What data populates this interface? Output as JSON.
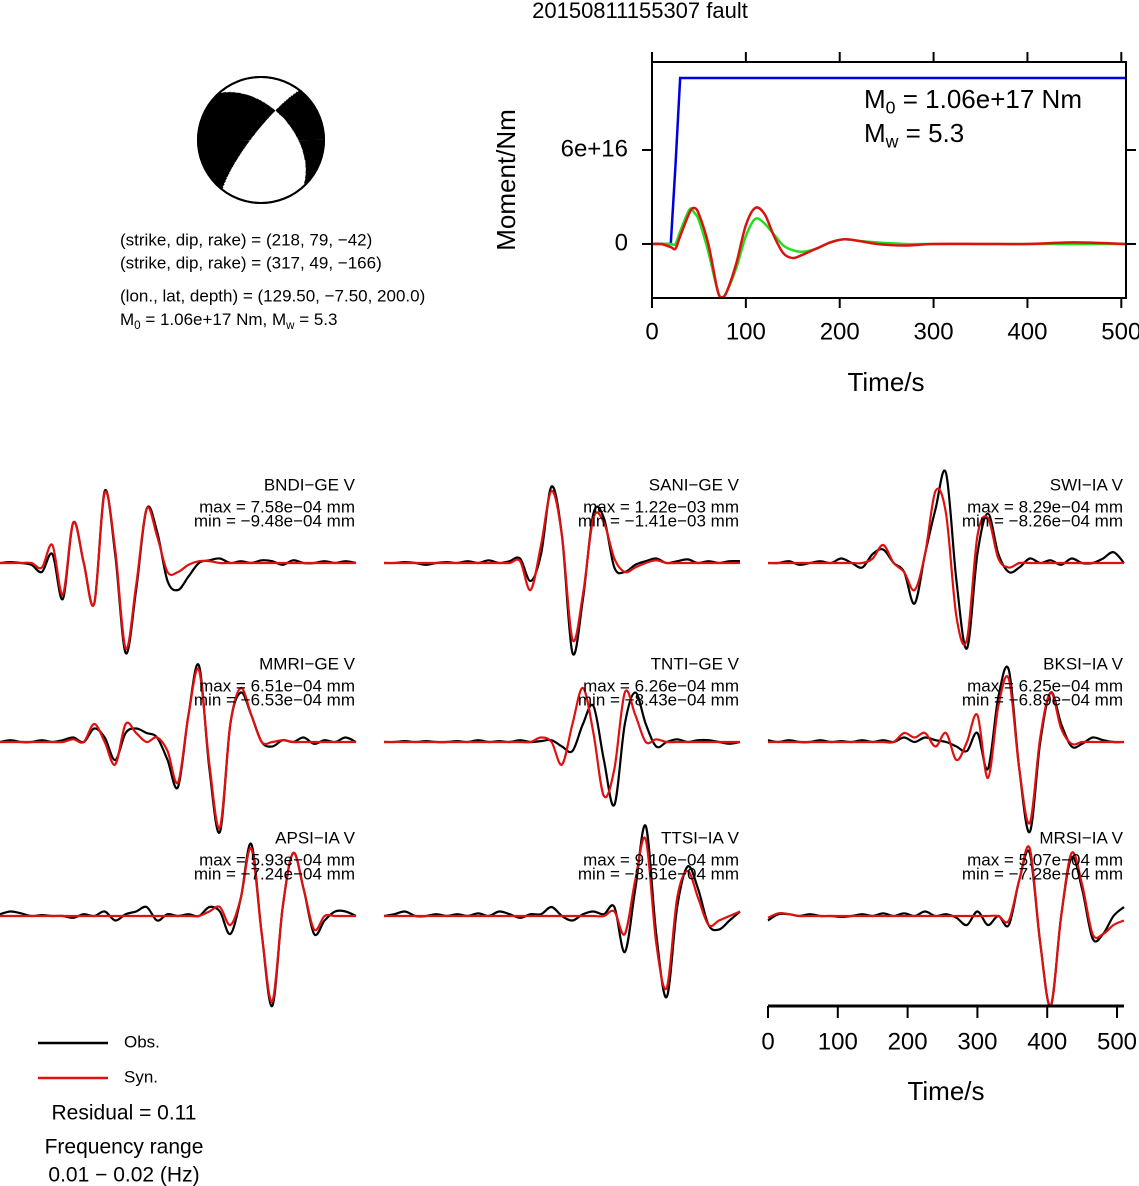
{
  "title": "20150811155307 fault",
  "chart_data": [
    {
      "type": "beachball",
      "planes": [
        {
          "strike": 218,
          "dip": 79,
          "rake": -42
        },
        {
          "strike": 317,
          "dip": 49,
          "rake": -166
        }
      ],
      "labels": [
        "(strike, dip, rake) = (218, 79, −42)",
        "(strike, dip, rake) = (317, 49, −166)",
        "(lon., lat, depth) = (129.50, −7.50, 200.0)"
      ],
      "moment_label": [
        "M",
        "0",
        " = 1.06e+17 Nm, M",
        "w",
        " = 5.3"
      ]
    },
    {
      "type": "line",
      "ylabel": "Moment/Nm",
      "xlabel": "Time/s",
      "x": [
        0,
        10,
        20,
        25,
        30,
        40,
        45,
        50,
        60,
        70,
        75,
        80,
        90,
        100,
        110,
        120,
        130,
        140,
        150,
        160,
        175,
        190,
        205,
        220,
        240,
        270,
        300,
        350,
        400,
        450,
        505
      ],
      "xlim": [
        0,
        505
      ],
      "xticks": [
        0,
        100,
        200,
        300,
        400,
        500
      ],
      "ylim": [
        -3.45e+16,
        1.162e+17
      ],
      "yticks": [
        0,
        {
          "value": 6e+16,
          "label": "6e+16"
        }
      ],
      "series": [
        {
          "color": "#0000dd",
          "values": [
            0,
            0,
            0,
            5e+16,
            1.06e+17,
            1.06e+17,
            1.06e+17,
            1.06e+17,
            1.06e+17,
            1.06e+17,
            1.06e+17,
            1.06e+17,
            1.06e+17,
            1.06e+17,
            1.06e+17,
            1.06e+17,
            1.06e+17,
            1.06e+17,
            1.06e+17,
            1.06e+17,
            1.06e+17,
            1.06e+17,
            1.06e+17,
            1.06e+17,
            1.06e+17,
            1.06e+17,
            1.06e+17,
            1.06e+17,
            1.06e+17,
            1.06e+17,
            1.06e+17
          ]
        },
        {
          "color": "#22dd22",
          "values": [
            0,
            0,
            0,
            0,
            8000000000000000.0,
            2.2e+16,
            2e+16,
            1.5e+16,
            -5000000000000000.0,
            -3e+16,
            -3.4e+16,
            -3e+16,
            -1.5e+16,
            5000000000000000.0,
            1.6e+16,
            1.3e+16,
            6000000000000000.0,
            -1000000000000000.0,
            -4000000000000000.0,
            -5000000000000000.0,
            -3000000000000000.0,
            1000000000000000.0,
            3000000000000000.0,
            2000000000000000.0,
            1000000000000000.0,
            0,
            0,
            0,
            0,
            0,
            0
          ]
        },
        {
          "color": "#dd1111",
          "values": [
            0,
            0,
            -2000000000000000.0,
            -3000000000000000.0,
            5000000000000000.0,
            2e+16,
            2.3e+16,
            1.9e+16,
            0,
            -3e+16,
            -3.4e+16,
            -3e+16,
            -1.2e+16,
            1.2e+16,
            2.3e+16,
            1.9e+16,
            5000000000000000.0,
            -6000000000000000.0,
            -9000000000000000.0,
            -7000000000000000.0,
            -3000000000000000.0,
            1000000000000000.0,
            3000000000000000.0,
            2000000000000000.0,
            0,
            -1000000000000000.0,
            0,
            0,
            0,
            1000000000000000.0,
            0
          ]
        }
      ],
      "annotations": [
        [
          "M",
          "0",
          " = 1.06e+17 Nm"
        ],
        [
          "M",
          "w",
          " = 5.3"
        ]
      ]
    },
    {
      "type": "waveforms",
      "x": [
        0,
        15,
        30,
        45,
        60,
        75,
        90,
        105,
        120,
        135,
        150,
        165,
        180,
        195,
        210,
        225,
        240,
        255,
        270,
        285,
        300,
        315,
        330,
        345,
        360,
        375,
        390,
        405,
        420,
        435,
        450,
        465,
        480,
        495,
        510
      ],
      "xlim": [
        0,
        510
      ],
      "xticks": [
        0,
        100,
        200,
        300,
        400,
        500
      ],
      "xlabel": "Time/s",
      "ylim": [
        -1,
        1
      ],
      "series": [
        {
          "name": "Obs.",
          "color": "#000000"
        },
        {
          "name": "Syn.",
          "color": "#e01010"
        }
      ],
      "panels": [
        {
          "label": "BNDI−GE V",
          "max_label": "max = 7.58e−04 mm",
          "min_label": "min = −9.48e−04 mm",
          "values": [
            [
              0,
              0.01,
              0,
              -0.02,
              -0.1,
              0.1,
              -0.4,
              0.45,
              0,
              -0.45,
              0.8,
              0.1,
              -1,
              -0.3,
              0.6,
              0.35,
              -0.2,
              -0.3,
              -0.15,
              0,
              0.03,
              0.05,
              0,
              0.02,
              0,
              0.03,
              0.02,
              -0.02,
              0.03,
              0,
              0,
              0.02,
              0,
              0.02,
              0
            ],
            [
              0,
              0,
              0,
              0,
              -0.05,
              0.2,
              -0.35,
              0.45,
              0,
              -0.45,
              0.78,
              0.15,
              -0.95,
              -0.25,
              0.6,
              0.3,
              -0.1,
              -0.1,
              -0.02,
              0.02,
              0.02,
              0,
              0,
              0,
              0,
              0,
              0,
              0,
              0,
              0,
              0,
              0,
              0,
              0,
              0
            ]
          ]
        },
        {
          "label": "SANI−GE V",
          "max_label": "max = 1.22e−03 mm",
          "min_label": "min = −1.41e−03 mm",
          "values": [
            [
              0,
              0,
              0.01,
              0,
              -0.02,
              0,
              0.01,
              0,
              0.02,
              0,
              0.03,
              0,
              0.02,
              0.05,
              -0.2,
              0.1,
              0.85,
              0.3,
              -1,
              -0.4,
              0.55,
              0.5,
              -0.05,
              -0.1,
              -0.02,
              0.02,
              0.05,
              0,
              0.02,
              0.04,
              0,
              0.02,
              0,
              0.02,
              0.02
            ],
            [
              0,
              0,
              0,
              0,
              0,
              0,
              0,
              0,
              0,
              0,
              0,
              0,
              0,
              0.02,
              -0.3,
              0.2,
              0.8,
              0.3,
              -0.85,
              -0.35,
              0.5,
              0.45,
              0.05,
              -0.1,
              -0.05,
              0,
              0.03,
              0,
              0,
              0,
              0,
              0,
              0,
              0,
              0
            ]
          ]
        },
        {
          "label": "SWI−IA V",
          "max_label": "max = 8.29e−04 mm",
          "min_label": "min = −8.26e−04 mm",
          "values": [
            [
              0,
              0,
              0.02,
              -0.02,
              0,
              0.02,
              0,
              0.05,
              0,
              -0.05,
              0.1,
              0.15,
              0,
              -0.1,
              -0.45,
              0.1,
              0.6,
              1,
              -0.2,
              -0.95,
              0.1,
              0.55,
              0.1,
              -0.1,
              -0.05,
              0.05,
              0,
              0.03,
              -0.02,
              0.05,
              0,
              0,
              0.05,
              0.12,
              0
            ],
            [
              0,
              0,
              0,
              0,
              0,
              0,
              0,
              0,
              0,
              0,
              0.05,
              0.2,
              0,
              -0.1,
              -0.3,
              0.1,
              0.8,
              0.55,
              -0.6,
              -0.85,
              0.3,
              0.5,
              0.05,
              -0.05,
              0,
              0,
              0,
              0,
              0,
              0,
              0,
              0,
              0,
              0,
              0
            ]
          ]
        },
        {
          "label": "MMRI−GE V",
          "max_label": "max = 6.51e−04 mm",
          "min_label": "min = −6.53e−04 mm",
          "values": [
            [
              0,
              0.02,
              0,
              0,
              0.02,
              0,
              0.02,
              0.05,
              0,
              0.15,
              0.05,
              -0.2,
              0.1,
              0.15,
              0.1,
              0.05,
              -0.2,
              -0.5,
              0.3,
              0.85,
              -0.3,
              -1,
              0.2,
              0.55,
              0.3,
              0,
              -0.05,
              0.02,
              0,
              0.05,
              -0.02,
              0.02,
              0,
              0.05,
              0
            ],
            [
              0,
              0,
              0,
              0,
              0,
              0,
              0,
              0.03,
              0,
              0.2,
              0,
              -0.25,
              0.2,
              0.1,
              0,
              0.05,
              -0.1,
              -0.45,
              0.3,
              0.8,
              -0.25,
              -0.95,
              0.2,
              0.6,
              0.3,
              0,
              0,
              0.02,
              0,
              0,
              0,
              0,
              0,
              0,
              0
            ]
          ]
        },
        {
          "label": "TNTI−GE V",
          "max_label": "max = 6.26e−04 mm",
          "min_label": "min = −8.43e−04 mm",
          "values": [
            [
              0,
              0,
              0.01,
              0,
              0.01,
              0,
              0,
              0.01,
              0,
              0.02,
              0,
              0.01,
              0,
              0.02,
              0,
              0.01,
              0.02,
              -0.05,
              -0.1,
              0.2,
              0.4,
              -0.2,
              -0.7,
              0.2,
              0.55,
              0.2,
              -0.05,
              0,
              0.03,
              0,
              0.02,
              0.02,
              0,
              -0.02,
              0
            ],
            [
              0,
              0,
              0,
              0,
              0,
              0,
              0,
              0,
              0,
              0,
              0,
              0,
              0,
              0,
              0,
              0.05,
              0,
              -0.25,
              0.2,
              0.6,
              0.1,
              -0.6,
              -0.3,
              0.55,
              0.3,
              0,
              0.03,
              0,
              0,
              0,
              0,
              0,
              0,
              0,
              0
            ]
          ]
        },
        {
          "label": "BKSI−IA V",
          "max_label": "max = 6.25e−04 mm",
          "min_label": "min = −6.89e−04 mm",
          "values": [
            [
              0.02,
              0,
              0.02,
              0,
              0,
              0.02,
              0,
              0.01,
              0,
              0.02,
              0,
              0.02,
              0,
              0.05,
              0,
              0.05,
              0.02,
              0,
              -0.05,
              -0.1,
              0.1,
              -0.3,
              0.5,
              0.8,
              -0.3,
              -1,
              0,
              0.55,
              0.2,
              -0.05,
              -0.02,
              0.05,
              0.02,
              0,
              0
            ],
            [
              0,
              0,
              0,
              0,
              0,
              0,
              0,
              0,
              0,
              0,
              0,
              0,
              0,
              0.1,
              0.05,
              0.1,
              -0.05,
              0.1,
              -0.2,
              0,
              0.3,
              -0.4,
              0.4,
              0.7,
              -0.3,
              -0.9,
              0.05,
              0.55,
              0.15,
              -0.02,
              0,
              0,
              0,
              0,
              0
            ]
          ]
        },
        {
          "label": "APSI−IA V",
          "max_label": "max = 5.93e−04 mm",
          "min_label": "min = −7.24e−04 mm",
          "values": [
            [
              0.02,
              0.05,
              0.03,
              0,
              0.01,
              0,
              0,
              -0.02,
              0.02,
              0,
              0.05,
              -0.05,
              0.02,
              0.05,
              0.1,
              -0.05,
              0.02,
              0,
              0.02,
              0,
              0.1,
              0.05,
              -0.2,
              0.2,
              0.8,
              -0.2,
              -1,
              0.1,
              0.7,
              0.3,
              -0.2,
              -0.05,
              0.05,
              0.05,
              0
            ],
            [
              0,
              0,
              0,
              0,
              0,
              0,
              0,
              0,
              0,
              0,
              0,
              0,
              0,
              0,
              0,
              0,
              0,
              0,
              0,
              0,
              0.05,
              0.1,
              -0.1,
              0.2,
              0.75,
              -0.2,
              -0.95,
              0.1,
              0.7,
              0.3,
              -0.15,
              0,
              0,
              0,
              0
            ]
          ]
        },
        {
          "label": "TTSI−IA V",
          "max_label": "max = 9.10e−04 mm",
          "min_label": "min = −8.61e−04 mm",
          "values": [
            [
              0,
              0.02,
              0.05,
              0,
              0,
              0.02,
              0,
              0.02,
              0,
              0.03,
              0,
              0.05,
              0.02,
              -0.02,
              0.02,
              0.02,
              0.1,
              0,
              -0.05,
              0.02,
              0.05,
              0.02,
              0.1,
              -0.4,
              0.3,
              1,
              -0.2,
              -0.9,
              0.1,
              0.55,
              0.3,
              -0.1,
              -0.15,
              -0.05,
              0.05
            ],
            [
              0,
              0,
              0,
              0,
              0,
              0,
              0,
              0,
              0,
              0,
              0,
              0,
              0,
              0,
              0,
              0,
              0,
              0,
              0,
              0,
              0,
              0,
              0.05,
              -0.2,
              0.4,
              0.85,
              -0.3,
              -0.8,
              0.2,
              0.5,
              0.2,
              -0.1,
              -0.05,
              0,
              0.05
            ]
          ]
        },
        {
          "label": "MRSI−IA V",
          "max_label": "max = 5.07e−04 mm",
          "min_label": "min = −7.28e−04 mm",
          "values": [
            [
              -0.05,
              0.02,
              0.02,
              0,
              0.02,
              0,
              0,
              -0.01,
              0,
              0.02,
              0,
              0.03,
              0,
              0.03,
              0,
              0.05,
              0,
              0.02,
              -0.02,
              -0.1,
              0.05,
              -0.1,
              0,
              -0.1,
              0.4,
              0.7,
              -0.3,
              -1,
              0,
              0.65,
              0.3,
              -0.25,
              -0.2,
              0,
              0.1
            ],
            [
              -0.02,
              0.03,
              0.02,
              0,
              0,
              0,
              0,
              0,
              0,
              0,
              0,
              0,
              0,
              0,
              0,
              0,
              0,
              0,
              0,
              0,
              0,
              0,
              0,
              -0.05,
              0.4,
              0.75,
              -0.3,
              -1,
              0,
              0.7,
              0.35,
              -0.2,
              -0.2,
              -0.1,
              -0.05
            ]
          ]
        }
      ],
      "notes": [
        "Residual = 0.11",
        "Frequency range",
        "0.01 − 0.02 (Hz)"
      ]
    }
  ]
}
